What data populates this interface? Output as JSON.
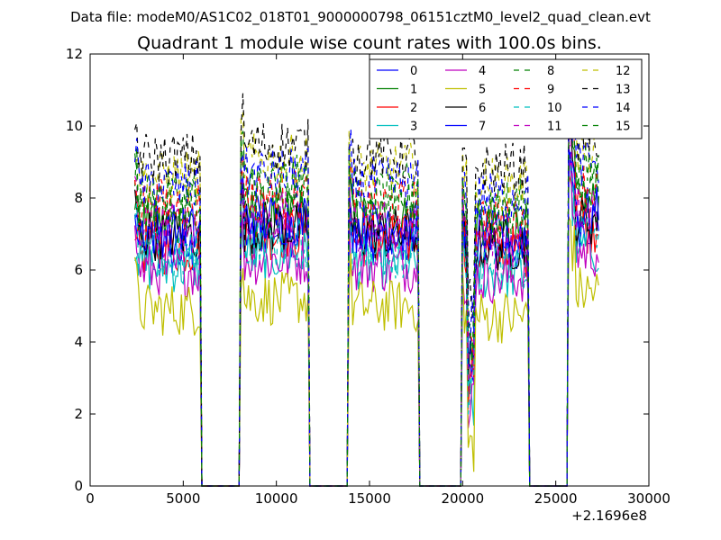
{
  "chart_data": {
    "type": "line",
    "suptitle": "Data file: modeM0/AS1C02_018T01_9000000798_06151cztM0_level2_quad_clean.evt",
    "title": "Quadrant 1 module wise count rates with 100.0s bins.",
    "xlabel": "",
    "ylabel": "",
    "x_offset_label": "+2.1696e8",
    "xlim": [
      0,
      30000
    ],
    "ylim": [
      0,
      12
    ],
    "xticks": [
      0,
      5000,
      10000,
      15000,
      20000,
      25000,
      30000
    ],
    "yticks": [
      0,
      2,
      4,
      6,
      8,
      10,
      12
    ],
    "grid": false,
    "legend_placement": "upper right, 4 columns",
    "active_segments": [
      [
        2400,
        5900
      ],
      [
        8100,
        11700
      ],
      [
        13900,
        17600
      ],
      [
        19950,
        23500
      ],
      [
        25700,
        27300
      ]
    ],
    "gap_value": 0,
    "series": [
      {
        "name": "0",
        "color": "#0000ff",
        "dash": "solid",
        "base": 6.9,
        "first_segment_level": 6.5
      },
      {
        "name": "1",
        "color": "#008000",
        "dash": "solid",
        "base": 7.4,
        "first_segment_level": 7.3
      },
      {
        "name": "2",
        "color": "#ff0000",
        "dash": "solid",
        "base": 6.8,
        "first_segment_level": 6.6
      },
      {
        "name": "3",
        "color": "#00bfbf",
        "dash": "solid",
        "base": 6.2,
        "first_segment_level": 6.1
      },
      {
        "name": "4",
        "color": "#bf00bf",
        "dash": "solid",
        "base": 6.1,
        "first_segment_level": 6.0
      },
      {
        "name": "5",
        "color": "#bfbf00",
        "dash": "solid",
        "base": 5.0,
        "first_segment_level": 4.9
      },
      {
        "name": "6",
        "color": "#000000",
        "dash": "solid",
        "base": 7.0,
        "first_segment_level": 7.0
      },
      {
        "name": "7",
        "color": "#0000ff",
        "dash": "solid",
        "base": 7.2,
        "first_segment_level": 7.1
      },
      {
        "name": "8",
        "color": "#008000",
        "dash": "dashed",
        "base": 8.2,
        "first_segment_level": 8.1
      },
      {
        "name": "9",
        "color": "#ff0000",
        "dash": "dashed",
        "base": 7.8,
        "first_segment_level": 7.8
      },
      {
        "name": "10",
        "color": "#00bfbf",
        "dash": "dashed",
        "base": 6.5,
        "first_segment_level": 6.4
      },
      {
        "name": "11",
        "color": "#bf00bf",
        "dash": "dashed",
        "base": 7.2,
        "first_segment_level": 7.2
      },
      {
        "name": "12",
        "color": "#bfbf00",
        "dash": "dashed",
        "base": 8.8,
        "first_segment_level": 8.6
      },
      {
        "name": "13",
        "color": "#000000",
        "dash": "dashed",
        "base": 9.2,
        "first_segment_level": 9.1
      },
      {
        "name": "14",
        "color": "#0000ff",
        "dash": "dashed",
        "base": 8.4,
        "first_segment_level": 8.3
      },
      {
        "name": "15",
        "color": "#008000",
        "dash": "dashed",
        "base": 7.9,
        "first_segment_level": 7.8
      }
    ]
  }
}
